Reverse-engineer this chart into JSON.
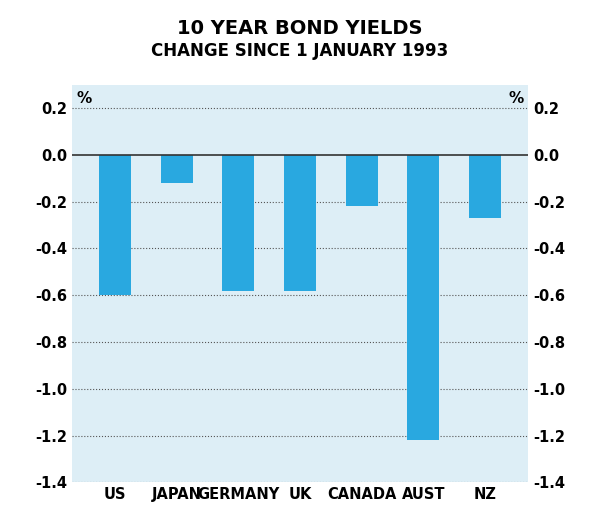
{
  "title_line1": "10 YEAR BOND YIELDS",
  "title_line2": "CHANGE SINCE 1 JANUARY 1993",
  "categories": [
    "US",
    "JAPAN",
    "GERMANY",
    "UK",
    "CANADA",
    "AUST",
    "NZ"
  ],
  "values": [
    -0.6,
    -0.12,
    -0.58,
    -0.58,
    -0.22,
    -1.22,
    -0.27
  ],
  "bar_color": "#29a8e0",
  "plot_bg_color": "#ddeef6",
  "fig_bg_color": "#ffffff",
  "ylim": [
    -1.4,
    0.3
  ],
  "yticks": [
    -1.4,
    -1.2,
    -1.0,
    -0.8,
    -0.6,
    -0.4,
    -0.2,
    0.0,
    0.2
  ],
  "ylabel_pct": "%",
  "grid_color": "#555555",
  "zero_line_color": "#333333",
  "title_fontsize": 14,
  "subtitle_fontsize": 12,
  "tick_fontsize": 10.5,
  "pct_fontsize": 11
}
